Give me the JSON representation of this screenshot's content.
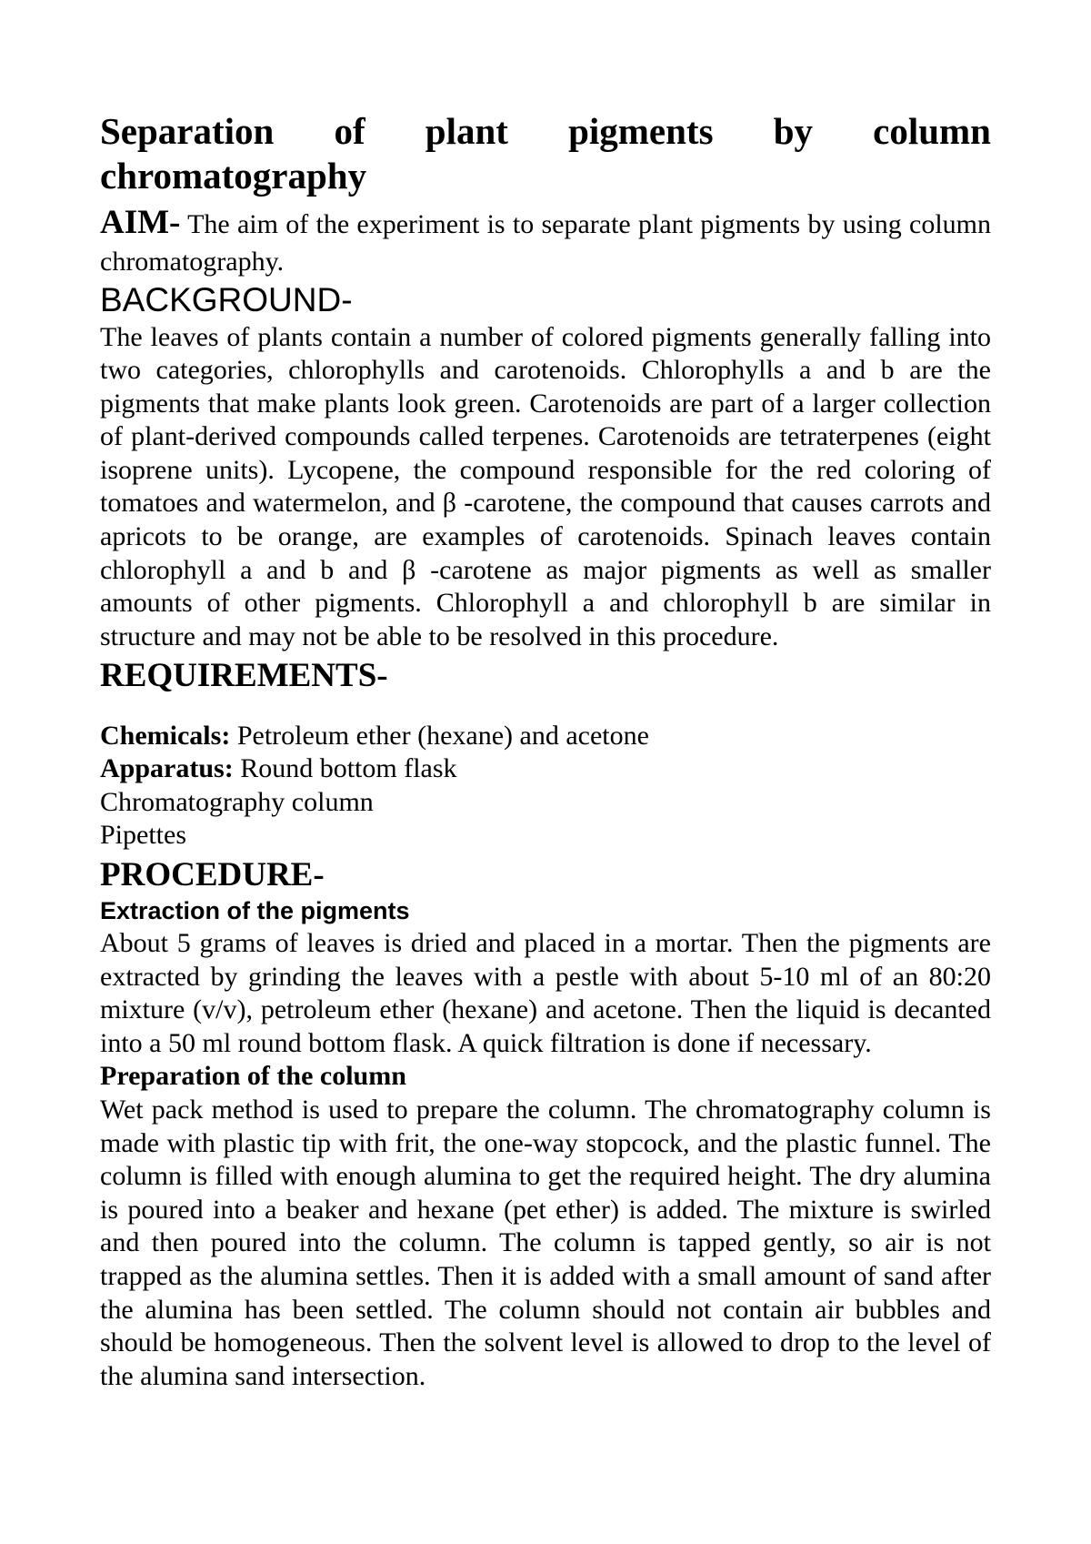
{
  "title_line1": "Separation of plant pigments by column",
  "title_line2": "chromatography",
  "aim": {
    "label": "AIM-",
    "text": " The aim of the experiment is to separate plant pigments by using column chromatography."
  },
  "background": {
    "heading": "BACKGROUND-",
    "text": "The leaves of plants contain a number of colored pigments generally falling into two categories, chlorophylls and carotenoids. Chlorophylls a and b are the pigments that make plants look green. Carotenoids are part of a larger collection of plant-derived compounds called terpenes. Carotenoids are tetraterpenes (eight isoprene units). Lycopene, the compound responsible for the red coloring of tomatoes and watermelon, and β -carotene, the compound that causes carrots and apricots to be orange, are examples of carotenoids. Spinach leaves contain chlorophyll a and b and β -carotene as major pigments as well as smaller amounts of other pigments. Chlorophyll a and chlorophyll b are similar in structure and may not be able to be resolved in this procedure."
  },
  "requirements": {
    "heading": "REQUIREMENTS-",
    "chemicals_label": "Chemicals: ",
    "chemicals_text": "Petroleum ether (hexane) and acetone",
    "apparatus_label": "Apparatus: ",
    "apparatus_text": "Round bottom flask",
    "line3": "Chromatography column",
    "line4": "Pipettes"
  },
  "procedure": {
    "heading": "PROCEDURE-",
    "sub1": "Extraction of the pigments",
    "text1": "About 5 grams of leaves is dried and placed in a mortar. Then the pigments are extracted by grinding the leaves with a pestle with about 5-10 ml of an 80:20 mixture (v/v), petroleum ether (hexane) and acetone. Then the liquid is decanted into a 50 ml round bottom flask. A quick filtration is done if necessary.",
    "sub2": "Preparation of the column",
    "text2": "Wet pack method is used to prepare the column. The chromatography column is made with plastic tip with frit, the one-way stopcock, and the plastic funnel. The column is filled with enough alumina to get the required height. The dry alumina is poured into a beaker and hexane (pet ether) is added. The mixture is swirled and then poured into the column. The column is tapped gently, so air is not trapped as the alumina settles. Then it is added with a small amount of sand after the alumina has been settled. The column should not contain air bubbles and should be homogeneous. Then the solvent level is allowed to drop to the level of the alumina sand intersection."
  }
}
